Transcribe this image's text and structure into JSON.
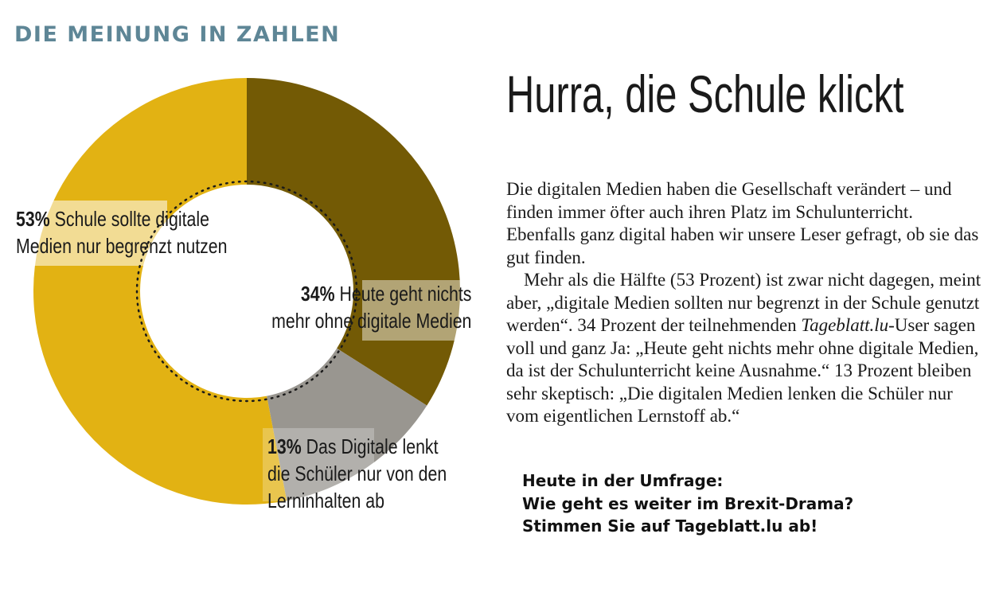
{
  "kicker": "DIE MEINUNG IN ZAHLEN",
  "headline": "Hurra, die Schule klickt",
  "article": {
    "p1": "Die digitalen Medien haben die Gesellschaft verändert – und finden immer öfter auch ihren Platz im Schulunterricht. Ebenfalls ganz digital haben wir unsere Leser gefragt, ob sie das gut finden.",
    "p2_a": "Mehr als die Hälfte (53 Prozent) ist zwar nicht dagegen, meint aber, „digitale Medien sollten nur begrenzt in der Schule genutzt werden“. 34 Prozent der teilnehmenden ",
    "p2_site": "Tageblatt.lu",
    "p2_b": "-User sagen voll und ganz Ja: „Heute geht nichts mehr ohne digitale Medien, da ist der Schulunterricht keine Ausnahme.“ 13 Prozent bleiben sehr skeptisch: „Die digitalen Medien lenken die Schüler nur vom eigentlichen Lernstoff ab.“"
  },
  "callout": {
    "line1": "Heute in der Umfrage:",
    "line2": "Wie geht es weiter im Brexit-Drama?",
    "line3": "Stimmen Sie auf Tageblatt.lu ab!"
  },
  "chart_data": {
    "type": "pie",
    "variant": "donut",
    "title": "",
    "slices": [
      {
        "pct": "34%",
        "value": 34,
        "line1": "Heute geht nichts",
        "line2": "mehr ohne digitale Medien",
        "color": "#735a05"
      },
      {
        "pct": "13%",
        "value": 13,
        "line1": "Das Digitale lenkt",
        "line2": "die Schüler nur von den",
        "line3": "Lerninhalten ab",
        "color": "#999690"
      },
      {
        "pct": "53%",
        "value": 53,
        "line1": "Schule sollte digitale",
        "line2": "Medien nur begrenzt nutzen",
        "color": "#e2b213"
      }
    ]
  }
}
